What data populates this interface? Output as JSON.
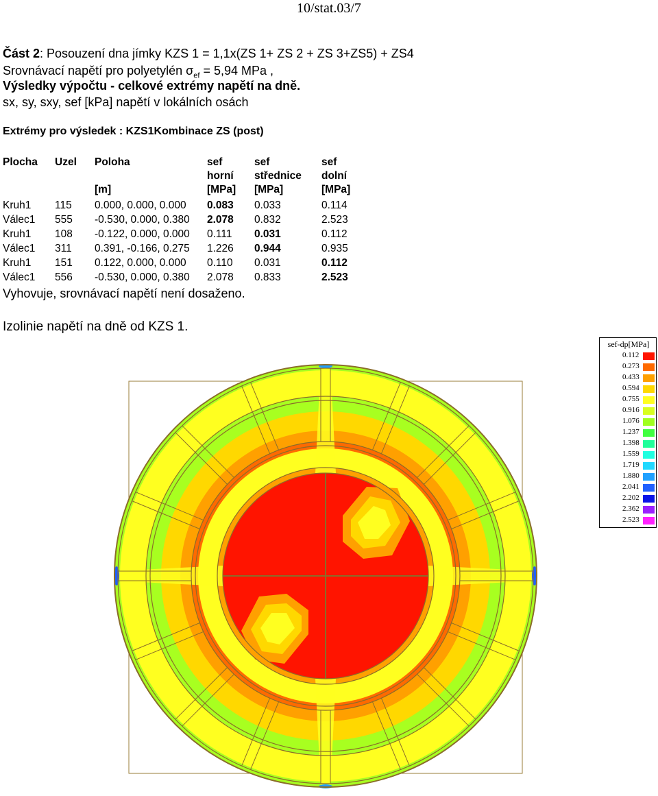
{
  "page_header": "10/stat.03/7",
  "section": {
    "title_bold": "Část 2",
    "title_rest": ":  Posouzení dna jímky KZS 1 =  1,1x(ZS 1+ ZS 2 + ZS 3+ZS5) + ZS4",
    "reference_prefix": "Srovnávací napětí pro polyetylén σ",
    "reference_sub": "ef",
    "reference_suffix": " =   5,94 MPa ,",
    "results_heading": "Výsledky výpočtu - celkové extrémy napětí na dně.",
    "units_line": "sx, sy, sxy, sef   [kPa]   napětí v lokálních osách",
    "extremes_heading": "Extrémy pro výsledek :  KZS1Kombinace ZS (post)"
  },
  "table": {
    "headers": {
      "plocha": "Plocha",
      "uzel": "Uzel",
      "poloha": "Poloha",
      "poloha_unit": "[m]",
      "sef1": "sef",
      "sef1_sub": "horní",
      "sef1_unit": "[MPa]",
      "sef2": "sef",
      "sef2_sub": "střednice",
      "sef2_unit": "[MPa]",
      "sef3": "sef",
      "sef3_sub": "dolní",
      "sef3_unit": "[MPa]"
    },
    "rows": [
      {
        "plocha": "Kruh1",
        "uzel": "115",
        "poloha": "0.000, 0.000, 0.000",
        "horni": "0.083",
        "stred": "0.033",
        "dolni": "0.114",
        "bold": "horni"
      },
      {
        "plocha": "Válec1",
        "uzel": "555",
        "poloha": "-0.530, 0.000, 0.380",
        "horni": "2.078",
        "stred": "0.832",
        "dolni": "2.523",
        "bold": "horni"
      },
      {
        "plocha": "Kruh1",
        "uzel": "108",
        "poloha": "-0.122, 0.000, 0.000",
        "horni": "0.111",
        "stred": "0.031",
        "dolni": "0.112",
        "bold": "stred"
      },
      {
        "plocha": "Válec1",
        "uzel": "311",
        "poloha": "0.391, -0.166, 0.275",
        "horni": "1.226",
        "stred": "0.944",
        "dolni": "0.935",
        "bold": "stred"
      },
      {
        "plocha": "Kruh1",
        "uzel": "151",
        "poloha": "0.122, 0.000, 0.000",
        "horni": "0.110",
        "stred": "0.031",
        "dolni": "0.112",
        "bold": "dolni"
      },
      {
        "plocha": "Válec1",
        "uzel": "556",
        "poloha": "-0.530, 0.000, 0.380",
        "horni": "2.078",
        "stred": "0.833",
        "dolni": "2.523",
        "bold": "dolni"
      }
    ]
  },
  "conclusion": "Vyhovuje, srovnávací napětí není dosaženo.",
  "figure_caption": "Izolinie  napětí na dně od KZS 1.",
  "legend": {
    "title": "sef-dp[MPa]",
    "entries": [
      {
        "value": "0.112",
        "color": "#ff1400"
      },
      {
        "value": "0.273",
        "color": "#ff6a00"
      },
      {
        "value": "0.433",
        "color": "#ffa000"
      },
      {
        "value": "0.594",
        "color": "#ffd800"
      },
      {
        "value": "0.755",
        "color": "#ffff20"
      },
      {
        "value": "0.916",
        "color": "#d8ff20"
      },
      {
        "value": "1.076",
        "color": "#a0ff20"
      },
      {
        "value": "1.237",
        "color": "#40ff40"
      },
      {
        "value": "1.398",
        "color": "#20ff9a"
      },
      {
        "value": "1.559",
        "color": "#20ffe0"
      },
      {
        "value": "1.719",
        "color": "#20d8ff"
      },
      {
        "value": "1.880",
        "color": "#20a0ff"
      },
      {
        "value": "2.041",
        "color": "#2060ff"
      },
      {
        "value": "2.202",
        "color": "#0a14e8"
      },
      {
        "value": "2.362",
        "color": "#9a20ff"
      },
      {
        "value": "2.523",
        "color": "#ff20ff"
      }
    ]
  }
}
